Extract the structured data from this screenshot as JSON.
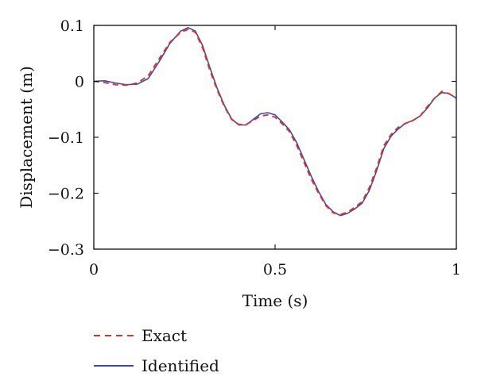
{
  "chart_data": {
    "type": "line",
    "title": "",
    "xlabel": "Time (s)",
    "ylabel": "Displacement (m)",
    "xlim": [
      0,
      1
    ],
    "ylim": [
      -0.3,
      0.1
    ],
    "xticks": [
      0,
      0.5,
      1
    ],
    "xtick_labels": [
      "0",
      "0.5",
      "1"
    ],
    "yticks": [
      0.1,
      0,
      -0.1,
      -0.2,
      -0.3
    ],
    "ytick_labels": [
      "0.1",
      "0",
      "−0.1",
      "−0.2",
      "−0.3"
    ],
    "grid": false,
    "legend_position": "bottom-left",
    "series": [
      {
        "name": "Exact",
        "style": "dashed",
        "color": "#e0312a",
        "x": [
          0,
          0.03,
          0.06,
          0.09,
          0.12,
          0.15,
          0.18,
          0.21,
          0.24,
          0.26,
          0.28,
          0.3,
          0.32,
          0.34,
          0.36,
          0.38,
          0.4,
          0.42,
          0.44,
          0.46,
          0.48,
          0.5,
          0.52,
          0.54,
          0.56,
          0.58,
          0.6,
          0.62,
          0.64,
          0.66,
          0.68,
          0.7,
          0.72,
          0.74,
          0.76,
          0.78,
          0.8,
          0.82,
          0.84,
          0.86,
          0.88,
          0.9,
          0.92,
          0.94,
          0.96,
          0.98,
          1.0
        ],
        "y": [
          0.0,
          -0.002,
          -0.006,
          -0.007,
          -0.003,
          0.01,
          0.04,
          0.07,
          0.088,
          0.093,
          0.088,
          0.06,
          0.02,
          -0.015,
          -0.045,
          -0.068,
          -0.077,
          -0.077,
          -0.07,
          -0.062,
          -0.06,
          -0.064,
          -0.076,
          -0.09,
          -0.115,
          -0.145,
          -0.175,
          -0.2,
          -0.222,
          -0.235,
          -0.238,
          -0.234,
          -0.225,
          -0.215,
          -0.19,
          -0.155,
          -0.115,
          -0.095,
          -0.082,
          -0.075,
          -0.07,
          -0.062,
          -0.045,
          -0.03,
          -0.018,
          -0.022,
          -0.03
        ]
      },
      {
        "name": "Identified",
        "style": "solid",
        "color": "#3a4bb0",
        "x": [
          0,
          0.03,
          0.06,
          0.09,
          0.12,
          0.15,
          0.18,
          0.21,
          0.24,
          0.26,
          0.28,
          0.3,
          0.32,
          0.34,
          0.36,
          0.38,
          0.4,
          0.42,
          0.44,
          0.46,
          0.48,
          0.5,
          0.52,
          0.54,
          0.56,
          0.58,
          0.6,
          0.62,
          0.64,
          0.66,
          0.68,
          0.7,
          0.72,
          0.74,
          0.76,
          0.78,
          0.8,
          0.82,
          0.84,
          0.86,
          0.88,
          0.9,
          0.92,
          0.94,
          0.96,
          0.98,
          1.0
        ],
        "y": [
          0.0,
          0.001,
          -0.003,
          -0.006,
          -0.005,
          0.005,
          0.035,
          0.068,
          0.09,
          0.096,
          0.09,
          0.064,
          0.025,
          -0.012,
          -0.043,
          -0.067,
          -0.078,
          -0.078,
          -0.068,
          -0.058,
          -0.056,
          -0.06,
          -0.073,
          -0.087,
          -0.11,
          -0.14,
          -0.17,
          -0.197,
          -0.22,
          -0.233,
          -0.24,
          -0.236,
          -0.228,
          -0.218,
          -0.195,
          -0.16,
          -0.12,
          -0.098,
          -0.085,
          -0.075,
          -0.07,
          -0.062,
          -0.048,
          -0.03,
          -0.02,
          -0.022,
          -0.03
        ]
      }
    ]
  }
}
